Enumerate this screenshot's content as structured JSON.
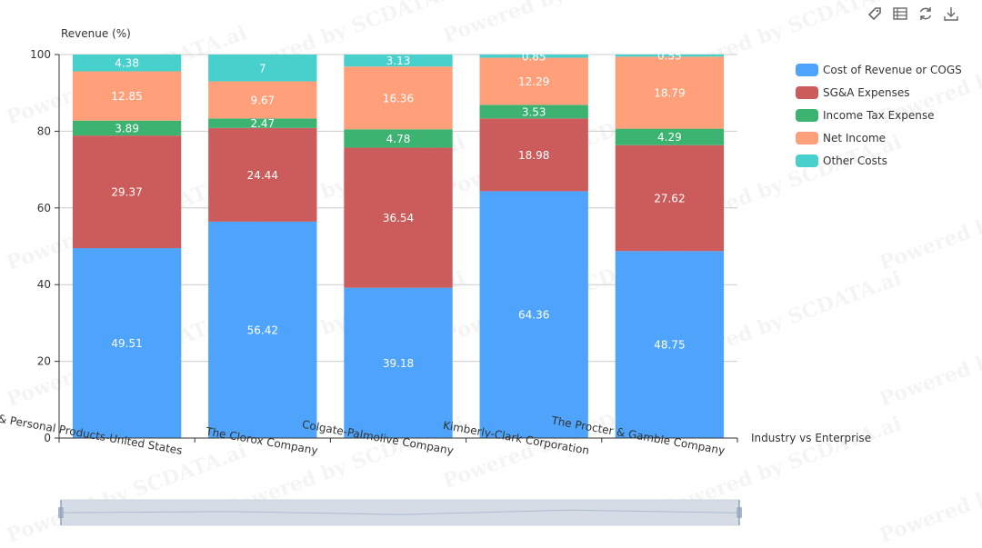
{
  "toolbar": {
    "icons": [
      "tag-icon",
      "data-view-icon",
      "restore-icon",
      "download-icon"
    ]
  },
  "watermark": "Powered by SCDATA.ai",
  "chart_data": {
    "type": "bar",
    "stacked": true,
    "title": "",
    "ylabel": "Revenue (%)",
    "xlabel": "Industry vs Enterprise",
    "ylim": [
      0,
      100
    ],
    "yticks": [
      0,
      20,
      40,
      60,
      80,
      100
    ],
    "grid": true,
    "legend_position": "right",
    "categories": [
      "Household & Personal Products-United States",
      "The Clorox Company",
      "Colgate-Palmolive Company",
      "Kimberly-Clark Corporation",
      "The Procter & Gamble Company"
    ],
    "series": [
      {
        "name": "Cost of Revenue or COGS",
        "color": "#4ea4fb",
        "values": [
          49.51,
          56.42,
          39.18,
          64.36,
          48.75
        ]
      },
      {
        "name": "SG&A Expenses",
        "color": "#cc5c5c",
        "values": [
          29.37,
          24.44,
          36.54,
          18.98,
          27.62
        ]
      },
      {
        "name": "Income Tax Expense",
        "color": "#3cb371",
        "values": [
          3.89,
          2.47,
          4.78,
          3.53,
          4.29
        ]
      },
      {
        "name": "Net Income",
        "color": "#ffa07a",
        "values": [
          12.85,
          9.67,
          16.36,
          12.29,
          18.79
        ]
      },
      {
        "name": "Other Costs",
        "color": "#48d1cc",
        "values": [
          4.38,
          7,
          3.13,
          0.85,
          0.55
        ]
      }
    ],
    "data_zoom": {
      "start_percent": 0,
      "end_percent": 100
    }
  }
}
